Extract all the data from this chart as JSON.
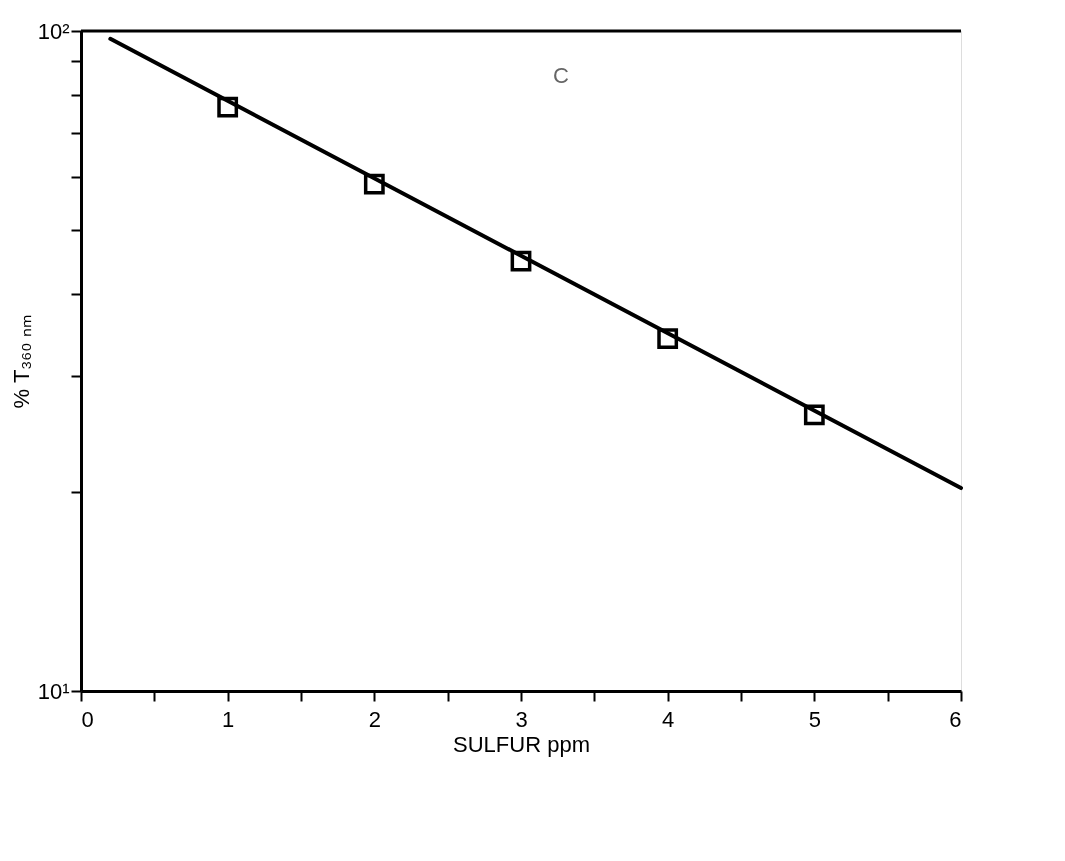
{
  "chart_data": {
    "type": "scatter",
    "xlabel": "SULFUR ppm",
    "ylabel": "% T₃₆₀ ₙₘ",
    "log": "y",
    "xlim": [
      0,
      6
    ],
    "ylim": [
      10,
      100
    ],
    "xticks": [
      0,
      {
        "value": 0.5,
        "label": null
      },
      1,
      {
        "value": 1.5,
        "label": null
      },
      2,
      {
        "value": 2.5,
        "label": null
      },
      3,
      {
        "value": 3.5,
        "label": null
      },
      4,
      {
        "value": 4.5,
        "label": null
      },
      5,
      {
        "value": 5.5,
        "label": null
      },
      6
    ],
    "yticks": [
      {
        "value": 10,
        "label": "10¹"
      },
      {
        "value": 20,
        "label": null
      },
      {
        "value": 30,
        "label": null
      },
      {
        "value": 40,
        "label": null
      },
      {
        "value": 50,
        "label": null
      },
      {
        "value": 60,
        "label": null
      },
      {
        "value": 70,
        "label": null
      },
      {
        "value": 80,
        "label": null
      },
      {
        "value": 90,
        "label": null
      },
      {
        "value": 100,
        "label": "10²"
      }
    ],
    "annotations": [
      "C"
    ],
    "series": [
      {
        "type": "scatter",
        "marker": "square",
        "color": "#000000",
        "x": [
          1,
          2,
          3,
          4,
          5
        ],
        "values": [
          76.7,
          58.6,
          44.8,
          34.2,
          26.2
        ]
      },
      {
        "type": "line",
        "marker": "none",
        "line_style": "solid",
        "color": "#000000",
        "x": [
          0.2,
          6
        ],
        "values": [
          97.3,
          20.3
        ]
      }
    ]
  }
}
